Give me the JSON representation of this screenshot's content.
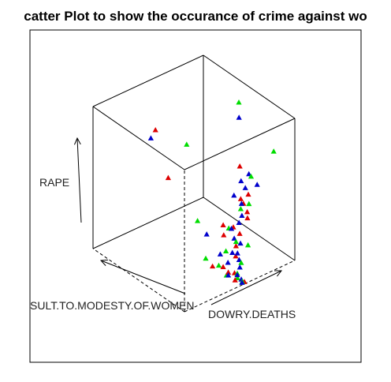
{
  "chart_data": {
    "type": "scatter",
    "subtype": "3d-scatter",
    "title": "catter Plot to show the occurance of crime against wo",
    "zlabel": "RAPE",
    "xlabel": "DOWRY.DEATHS",
    "ylabel": "SULT.TO.MODESTY.OF.WOMEN",
    "box": true,
    "grid": false,
    "legend": "none",
    "marker": "triangle",
    "colors": {
      "red": "#dd0000",
      "green": "#00dd00",
      "blue": "#0000cc"
    },
    "series": [
      {
        "color": "red",
        "points": [
          [
            0.6,
            0.12,
            0.28
          ],
          [
            0.55,
            0.1,
            0.22
          ],
          [
            0.5,
            0.18,
            0.35
          ],
          [
            0.48,
            0.15,
            0.3
          ],
          [
            0.7,
            0.2,
            0.42
          ],
          [
            0.4,
            0.8,
            0.78
          ],
          [
            0.62,
            0.05,
            0.58
          ],
          [
            0.75,
            0.3,
            0.62
          ],
          [
            0.35,
            0.6,
            0.55
          ],
          [
            0.8,
            0.35,
            0.35
          ],
          [
            0.52,
            0.08,
            0.05
          ],
          [
            0.45,
            0.12,
            0.1
          ],
          [
            0.58,
            0.14,
            0.12
          ],
          [
            0.42,
            0.2,
            0.08
          ],
          [
            0.5,
            0.05,
            0.02
          ],
          [
            0.56,
            0.02,
            0.0
          ],
          [
            0.48,
            0.1,
            0.06
          ],
          [
            0.65,
            0.25,
            0.25
          ],
          [
            0.72,
            0.18,
            0.32
          ],
          [
            0.9,
            0.4,
            0.2
          ]
        ]
      },
      {
        "color": "green",
        "points": [
          [
            0.55,
            0.1,
            0.25
          ],
          [
            0.5,
            0.15,
            0.18
          ],
          [
            0.85,
            0.05,
            0.8
          ],
          [
            0.6,
            0.7,
            0.65
          ],
          [
            0.45,
            0.4,
            0.3
          ],
          [
            0.75,
            0.2,
            0.4
          ],
          [
            0.52,
            0.05,
            0.06
          ],
          [
            0.48,
            0.12,
            0.03
          ],
          [
            0.58,
            0.08,
            0.1
          ],
          [
            0.54,
            0.02,
            0.01
          ],
          [
            0.4,
            0.25,
            0.12
          ],
          [
            0.65,
            0.3,
            0.22
          ],
          [
            0.62,
            0.02,
            0.72
          ],
          [
            0.8,
            0.35,
            0.28
          ],
          [
            0.46,
            0.18,
            0.08
          ],
          [
            0.99,
            0.6,
            0.85
          ],
          [
            0.53,
            0.06,
            0.02
          ],
          [
            0.7,
            0.15,
            0.15
          ]
        ]
      },
      {
        "color": "blue",
        "points": [
          [
            0.6,
            0.1,
            0.5
          ],
          [
            0.65,
            0.08,
            0.7
          ],
          [
            0.7,
            0.05,
            0.62
          ],
          [
            0.62,
            0.12,
            0.4
          ],
          [
            0.55,
            0.15,
            0.32
          ],
          [
            0.5,
            0.08,
            0.2
          ],
          [
            0.58,
            0.12,
            0.15
          ],
          [
            0.45,
            0.3,
            0.25
          ],
          [
            0.72,
            0.25,
            0.55
          ],
          [
            0.8,
            0.3,
            0.45
          ],
          [
            0.52,
            0.05,
            0.05
          ],
          [
            0.48,
            0.1,
            0.04
          ],
          [
            0.56,
            0.07,
            0.08
          ],
          [
            0.54,
            0.03,
            0.02
          ],
          [
            0.4,
            0.85,
            0.7
          ],
          [
            0.95,
            0.55,
            0.78
          ],
          [
            0.66,
            0.2,
            0.3
          ],
          [
            0.6,
            0.18,
            0.22
          ],
          [
            0.78,
            0.4,
            0.36
          ],
          [
            0.51,
            0.14,
            0.1
          ],
          [
            0.57,
            0.09,
            0.12
          ],
          [
            0.64,
            0.16,
            0.18
          ],
          [
            0.49,
            0.2,
            0.14
          ],
          [
            0.53,
            0.01,
            0.01
          ]
        ]
      }
    ]
  }
}
